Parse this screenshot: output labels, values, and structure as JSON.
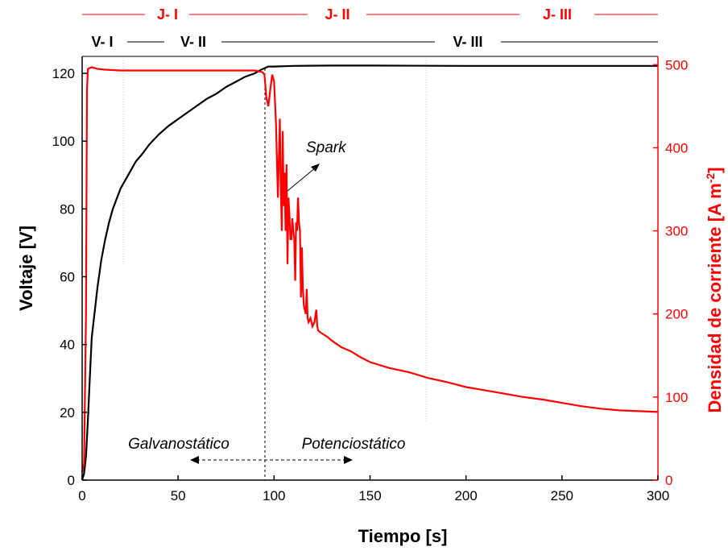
{
  "chart_data": {
    "type": "line",
    "xlabel": "Tiempo [s]",
    "ylabel_left": "Voltaje [V]",
    "ylabel_right_main": "Densidad de corriente [A m",
    "ylabel_right_sup": "-2",
    "ylabel_right_end": "]",
    "xlim": [
      0,
      300
    ],
    "ylim_left": [
      0,
      125
    ],
    "ylim_right": [
      0,
      510
    ],
    "xticks": [
      0,
      50,
      100,
      150,
      200,
      250,
      300
    ],
    "yticks_left": [
      0,
      20,
      40,
      60,
      80,
      100,
      120
    ],
    "yticks_right": [
      0,
      100,
      200,
      300,
      400,
      500
    ],
    "grid": false,
    "colors": {
      "voltage": "#000000",
      "current": "#ff0000"
    },
    "series": [
      {
        "axis": "left",
        "x": [
          0,
          1,
          2,
          3,
          4,
          5,
          6,
          7,
          8,
          9,
          10,
          12,
          14,
          16,
          18,
          20,
          22,
          25,
          28,
          31,
          35,
          40,
          45,
          50,
          55,
          60,
          65,
          70,
          75,
          80,
          85,
          90,
          93,
          95,
          97,
          100,
          110,
          130,
          150,
          200,
          250,
          300
        ],
        "values": [
          0,
          2,
          7,
          18,
          30,
          42,
          47,
          52,
          57,
          61,
          65,
          71,
          76,
          80,
          83,
          86,
          88,
          91,
          94,
          96,
          99,
          102,
          104.5,
          106.5,
          108.5,
          110.5,
          112.5,
          114,
          116,
          117.5,
          119,
          120,
          121,
          121.5,
          122,
          122,
          122.2,
          122.3,
          122.3,
          122.2,
          122.2,
          122.2
        ]
      },
      {
        "axis": "right",
        "x": [
          0,
          1,
          2,
          2.5,
          3,
          5,
          8,
          12,
          20,
          30,
          50,
          70,
          90,
          94,
          95,
          96,
          97,
          98,
          99,
          100,
          101,
          102,
          103,
          103.5,
          104,
          104.5,
          105,
          105.5,
          106,
          106.5,
          107,
          107.5,
          108,
          108.5,
          109,
          109.5,
          110,
          110.5,
          111,
          111.5,
          112,
          112.5,
          113,
          113.5,
          114,
          114.5,
          115,
          115.5,
          116,
          116.5,
          117,
          117.5,
          118,
          119,
          120,
          121,
          122,
          122.5,
          123,
          124,
          126,
          128,
          130,
          135,
          140,
          145,
          150,
          160,
          170,
          180,
          190,
          200,
          210,
          220,
          230,
          240,
          250,
          260,
          270,
          280,
          290,
          300
        ],
        "values": [
          10,
          20,
          200,
          470,
          495,
          497,
          495,
          494,
          493,
          493,
          493,
          493,
          493,
          491,
          488,
          460,
          450,
          470,
          488,
          480,
          430,
          340,
          435,
          350,
          300,
          420,
          330,
          370,
          300,
          380,
          260,
          340,
          320,
          290,
          290,
          315,
          300,
          290,
          240,
          310,
          300,
          340,
          310,
          300,
          220,
          280,
          230,
          210,
          205,
          200,
          230,
          195,
          190,
          195,
          185,
          190,
          205,
          185,
          180,
          178,
          175,
          172,
          168,
          160,
          155,
          148,
          142,
          135,
          130,
          123,
          118,
          112,
          108,
          104,
          100,
          97,
          93,
          89,
          86,
          84,
          83,
          82
        ]
      }
    ],
    "annotations": {
      "galvano": "Galvanostático",
      "potencio": "Potenciostático",
      "spark": "Spark",
      "stages_j": [
        "J- I",
        "J- II",
        "J- III"
      ],
      "stages_v": [
        "V- I",
        "V- II",
        "V- III"
      ]
    }
  }
}
